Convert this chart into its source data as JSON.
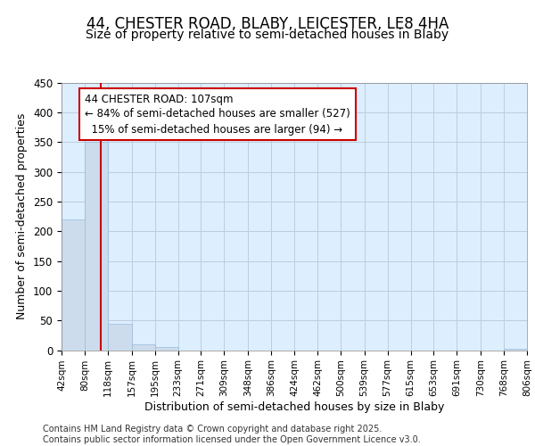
{
  "title": "44, CHESTER ROAD, BLABY, LEICESTER, LE8 4HA",
  "subtitle": "Size of property relative to semi-detached houses in Blaby",
  "xlabel": "Distribution of semi-detached houses by size in Blaby",
  "ylabel": "Number of semi-detached properties",
  "bin_edges": [
    42,
    80,
    118,
    157,
    195,
    233,
    271,
    309,
    348,
    386,
    424,
    462,
    500,
    539,
    577,
    615,
    653,
    691,
    730,
    768,
    806
  ],
  "bar_heights": [
    220,
    350,
    45,
    10,
    6,
    0,
    0,
    0,
    0,
    0,
    0,
    0,
    0,
    0,
    0,
    0,
    0,
    0,
    0,
    3
  ],
  "bar_color": "#ccdcec",
  "bar_edgecolor": "#99bbdd",
  "red_line_x": 107,
  "annotation_text": "44 CHESTER ROAD: 107sqm\n← 84% of semi-detached houses are smaller (527)\n  15% of semi-detached houses are larger (94) →",
  "annotation_box_facecolor": "#ffffff",
  "annotation_box_edgecolor": "#cc0000",
  "ylim": [
    0,
    450
  ],
  "grid_color": "#bbcfdf",
  "plot_bg_color": "#ddeeff",
  "figure_bg_color": "#ffffff",
  "footer": "Contains HM Land Registry data © Crown copyright and database right 2025.\nContains public sector information licensed under the Open Government Licence v3.0.",
  "tick_labels": [
    "42sqm",
    "80sqm",
    "118sqm",
    "157sqm",
    "195sqm",
    "233sqm",
    "271sqm",
    "309sqm",
    "348sqm",
    "386sqm",
    "424sqm",
    "462sqm",
    "500sqm",
    "539sqm",
    "577sqm",
    "615sqm",
    "653sqm",
    "691sqm",
    "730sqm",
    "768sqm",
    "806sqm"
  ],
  "yticks": [
    0,
    50,
    100,
    150,
    200,
    250,
    300,
    350,
    400,
    450
  ],
  "title_fontsize": 12,
  "subtitle_fontsize": 10,
  "axis_label_fontsize": 9,
  "tick_fontsize": 7.5,
  "annotation_fontsize": 8.5,
  "footer_fontsize": 7
}
